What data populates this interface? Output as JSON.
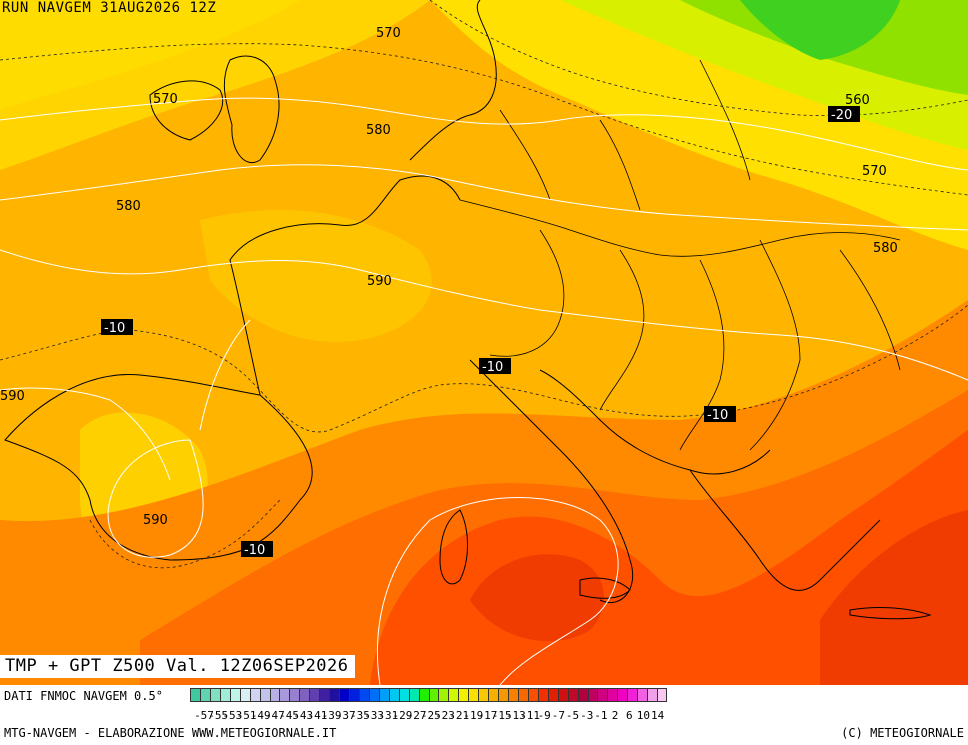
{
  "header": {
    "run_title": "RUN NAVGEM 31AUG2026 12Z"
  },
  "map": {
    "valid_title": "TMP + GPT Z500 Val. 12Z06SEP2026",
    "geopotential_labels": [
      "570",
      "570",
      "580",
      "580",
      "590",
      "590",
      "590",
      "560",
      "570",
      "580"
    ],
    "temperature_labels": [
      "-10",
      "-10",
      "-10",
      "-10",
      "-20"
    ]
  },
  "legend": {
    "source_text": "DATI FNMOC NAVGEM 0.5°",
    "ticks": [
      "-57",
      "-55",
      "-53",
      "-51",
      "-49",
      "-47",
      "-45",
      "-43",
      "-41",
      "-39",
      "-37",
      "-35",
      "-33",
      "-31",
      "-29",
      "-27",
      "-25",
      "-23",
      "-21",
      "-19",
      "-17",
      "-15",
      "-13",
      "-11",
      "-9",
      "-7",
      "-5",
      "-3",
      "-1",
      "2",
      "6",
      "10",
      "14"
    ],
    "colors": [
      "#40c8a0",
      "#60d4b0",
      "#80e0c0",
      "#a0ecd8",
      "#c0f4e8",
      "#d8f0f4",
      "#d0d4f0",
      "#c0c4ec",
      "#b8b0e4",
      "#a898dc",
      "#9880d0",
      "#8060c0",
      "#6040b0",
      "#4020a0",
      "#2010a0",
      "#0000c8",
      "#0020e0",
      "#0048f0",
      "#0070f8",
      "#00a0f8",
      "#00c8f0",
      "#00e0e0",
      "#00e8b0",
      "#20f000",
      "#60f000",
      "#a0f400",
      "#d0f800",
      "#f0f000",
      "#f8e000",
      "#f8c800",
      "#f8b000",
      "#f89800",
      "#f88000",
      "#f86800",
      "#f85000",
      "#f03000",
      "#e02000",
      "#d01010",
      "#c00828",
      "#b00040",
      "#c00060",
      "#d00080",
      "#e000a0",
      "#f000c0",
      "#f020d8",
      "#f060e0",
      "#f0a0e8",
      "#f8c8f0"
    ],
    "footer_left": "MTG-NAVGEM - ELABORAZIONE WWW.METEOGIORNALE.IT",
    "footer_right": "(C) METEOGIORNALE"
  }
}
